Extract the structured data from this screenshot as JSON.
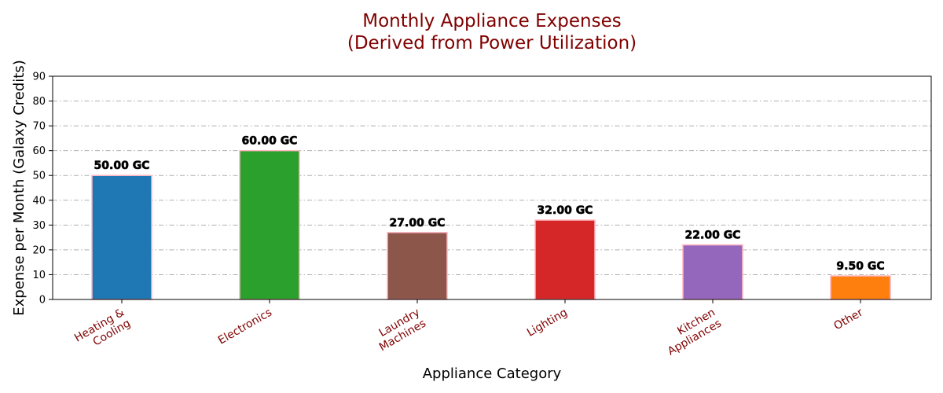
{
  "chart_data": {
    "type": "bar",
    "title_lines": [
      "Monthly Appliance Expenses",
      "(Derived from Power Utilization)"
    ],
    "xlabel": "Appliance Category",
    "ylabel": "Expense per Month (Galaxy Credits)",
    "ylim": [
      0,
      90
    ],
    "yticks": [
      0,
      10,
      20,
      30,
      40,
      50,
      60,
      70,
      80,
      90
    ],
    "grid": "horizontal, dash-dot",
    "categories": [
      [
        "Heating &",
        "Cooling"
      ],
      [
        "Electronics"
      ],
      [
        "Laundry",
        "Machines"
      ],
      [
        "Lighting"
      ],
      [
        "Kitchen",
        "Appliances"
      ],
      [
        "Other"
      ]
    ],
    "values": [
      50,
      60,
      27,
      32,
      22,
      9.5
    ],
    "value_labels": [
      "50.00 GC",
      "60.00 GC",
      "27.00 GC",
      "32.00 GC",
      "22.00 GC",
      "9.50 GC"
    ],
    "colors": [
      "#1f77b4",
      "#2ca02c",
      "#8c564b",
      "#d62728",
      "#9467bd",
      "#ff7f0e"
    ],
    "bar_edge_color": "#ffb6c1"
  }
}
